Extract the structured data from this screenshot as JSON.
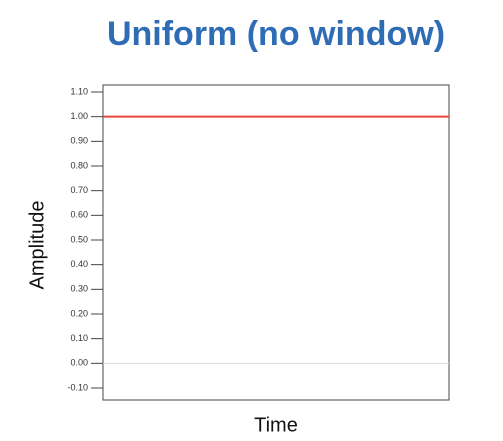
{
  "chart_data": {
    "type": "line",
    "title": "Uniform (no window)",
    "x_label": "Time",
    "y_label": "Amplitude",
    "categories": [
      null,
      null
    ],
    "series": [
      {
        "name": null,
        "color": "#e8453c",
        "values": [
          1.0,
          1.0
        ]
      }
    ],
    "ylim": [
      -0.1,
      1.1
    ],
    "yticks": [
      {
        "value": -0.1,
        "label": "-0.10"
      },
      {
        "value": 0,
        "label": "0.00"
      },
      {
        "value": 0.1,
        "label": "0.10"
      },
      {
        "value": 0.2,
        "label": "0.20"
      },
      {
        "value": 0.3,
        "label": "0.30"
      },
      {
        "value": 0.4,
        "label": "0.40"
      },
      {
        "value": 0.5,
        "label": "0.50"
      },
      {
        "value": 0.6,
        "label": "0.60"
      },
      {
        "value": 0.7,
        "label": "0.70"
      },
      {
        "value": 0.8,
        "label": "0.80"
      },
      {
        "value": 0.9,
        "label": "0.90"
      },
      {
        "value": 1.0,
        "label": "1.00"
      },
      {
        "value": 1.1,
        "label": "1.10"
      }
    ],
    "grid": false
  }
}
